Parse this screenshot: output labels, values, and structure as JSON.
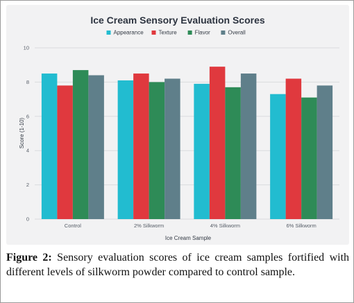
{
  "chart_data": {
    "type": "bar",
    "title": "Ice Cream Sensory Evaluation Scores",
    "xlabel": "Ice Cream Sample",
    "ylabel": "Score (1-10)",
    "ylim": [
      0,
      10
    ],
    "yticks": [
      0,
      2,
      4,
      6,
      8,
      10
    ],
    "categories": [
      "Control",
      "2% Silkworm",
      "4% Silkworm",
      "6% Silkworm"
    ],
    "series": [
      {
        "name": "Appearance",
        "color": "#22bcd0",
        "values": [
          8.5,
          8.1,
          7.9,
          7.3
        ]
      },
      {
        "name": "Texture",
        "color": "#e0393e",
        "values": [
          7.8,
          8.5,
          8.9,
          8.2
        ]
      },
      {
        "name": "Flavor",
        "color": "#2e8b57",
        "values": [
          8.7,
          8.0,
          7.7,
          7.1
        ]
      },
      {
        "name": "Overall",
        "color": "#5f7f8a",
        "values": [
          8.4,
          8.2,
          8.5,
          7.8
        ]
      }
    ],
    "legend_position": "top",
    "grid": true
  },
  "caption": {
    "label": "Figure 2:",
    "text": "Sensory evaluation scores of ice cream samples fortified with different levels of silkworm powder compared to control sample."
  }
}
